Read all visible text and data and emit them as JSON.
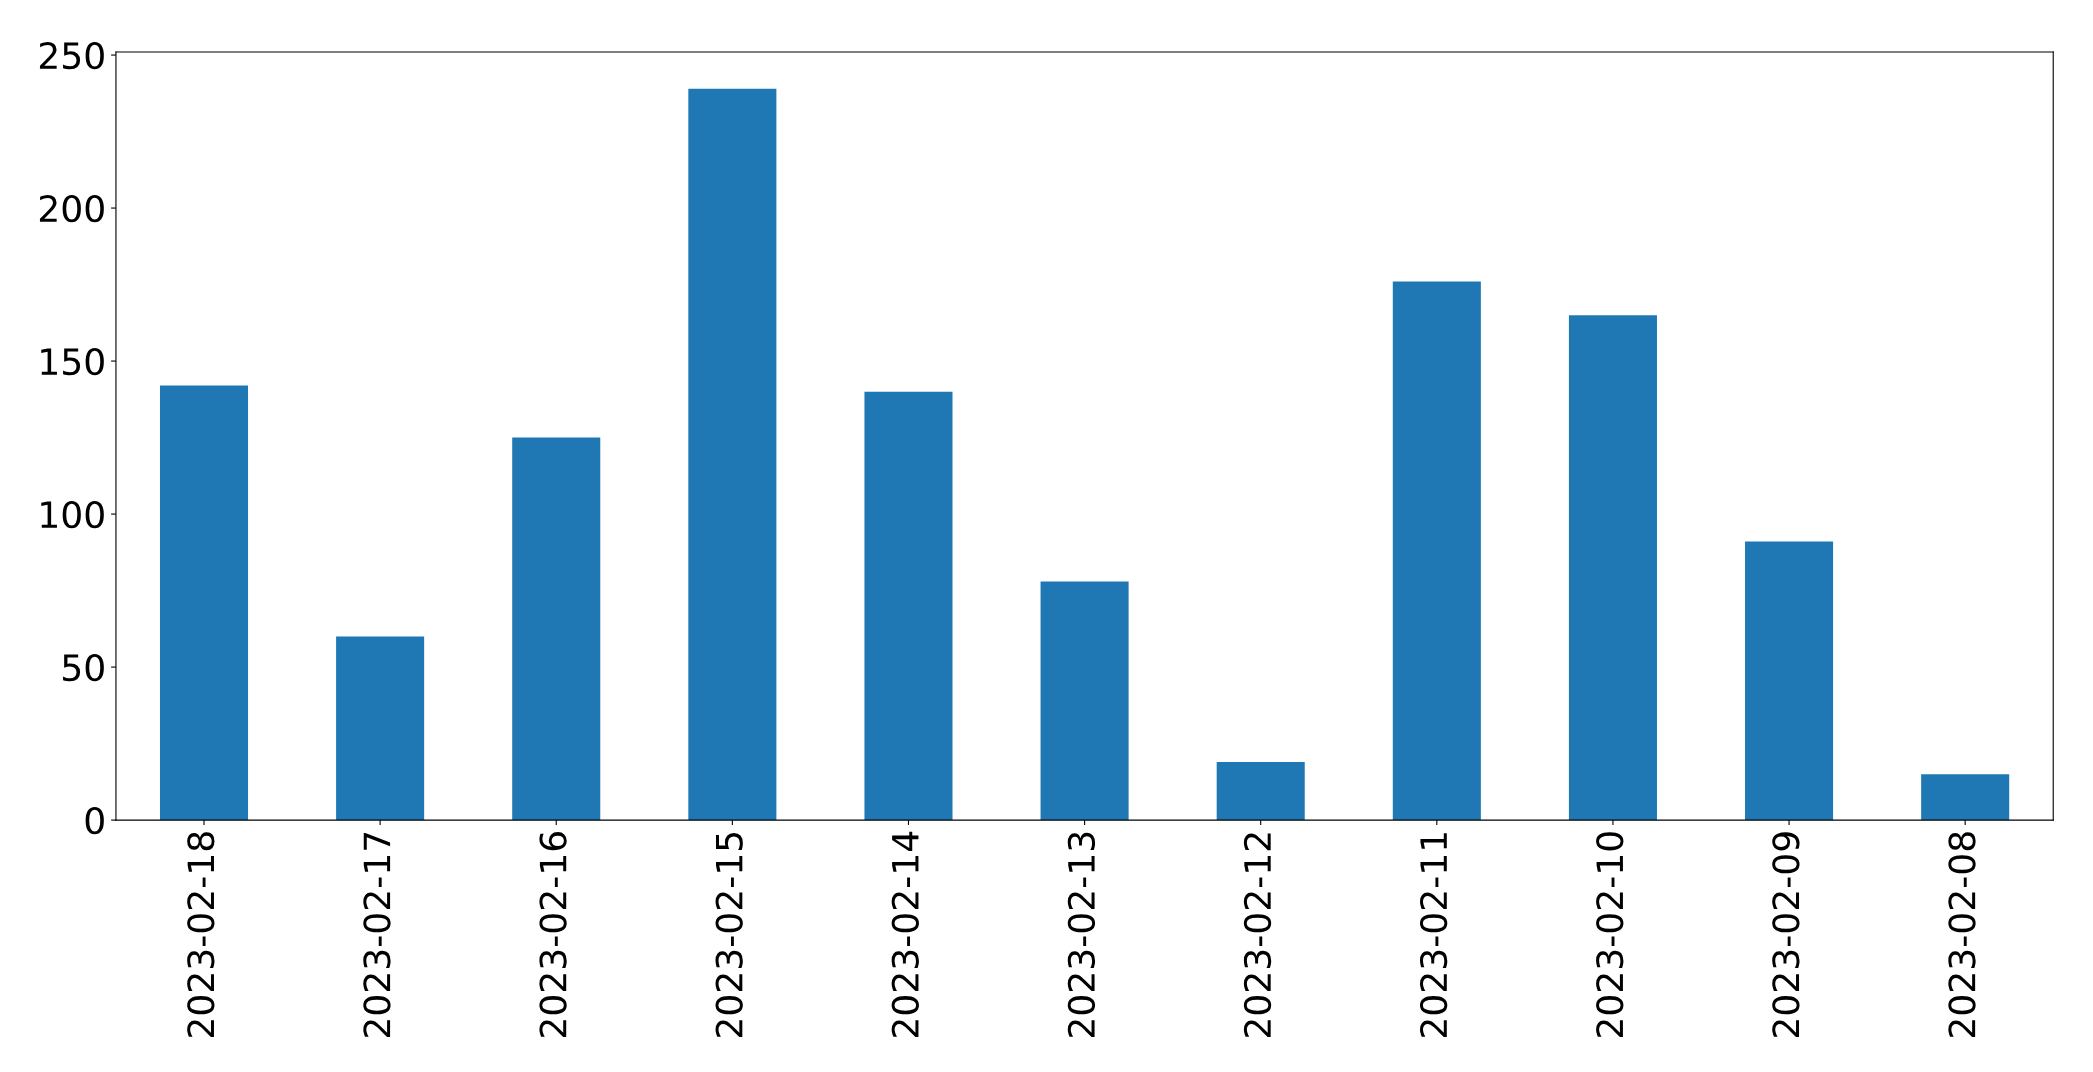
{
  "chart_data": {
    "type": "bar",
    "categories": [
      "2023-02-18",
      "2023-02-17",
      "2023-02-16",
      "2023-02-15",
      "2023-02-14",
      "2023-02-13",
      "2023-02-12",
      "2023-02-11",
      "2023-02-10",
      "2023-02-09",
      "2023-02-08"
    ],
    "values": [
      142,
      60,
      125,
      239,
      140,
      78,
      19,
      176,
      165,
      91,
      15
    ],
    "color": "#1f77b4",
    "ylim": [
      0,
      251
    ],
    "yticks": [
      0,
      50,
      100,
      150,
      200,
      250
    ],
    "grid": false,
    "legend": false
  }
}
